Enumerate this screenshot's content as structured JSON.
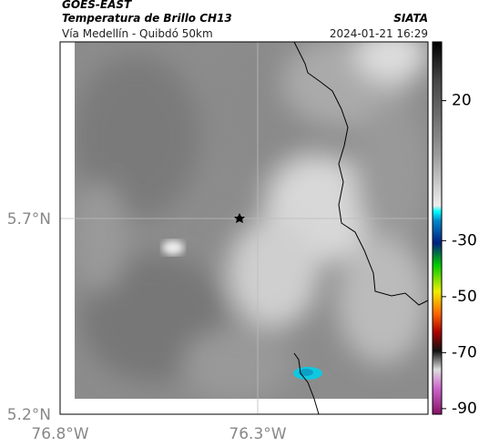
{
  "header": {
    "title": "GOES-EAST",
    "subtitle": "Temperatura de Brillo CH13",
    "source": "SIATA",
    "location": "Vía Medellín - Quibdó 50km",
    "datetime": "2024-01-21 16:29"
  },
  "map": {
    "yticks": [
      "5.7°N",
      "5.2°N"
    ],
    "xticks": [
      "76.8°W",
      "76.3°W"
    ]
  },
  "colorbar": {
    "lim": [
      -92,
      41
    ],
    "ticks": [
      20,
      -30,
      -50,
      -70,
      -90
    ]
  }
}
